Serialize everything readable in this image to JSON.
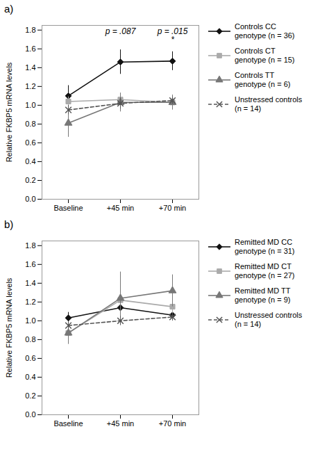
{
  "chart_data": [
    {
      "type": "line",
      "title": "a)",
      "categories": [
        "Baseline",
        "+45 min",
        "+70 min"
      ],
      "ylabel": "Relative FKBP5 mRNA levels",
      "ylim": [
        0.0,
        1.85
      ],
      "yticks": [
        {
          "value": 0.0,
          "label": "0.0"
        },
        0.2,
        0.4,
        0.6,
        0.8,
        {
          "value": 1.0,
          "label": "1.0"
        },
        1.2,
        1.4,
        1.6,
        1.8
      ],
      "legend": "right",
      "series": [
        {
          "name": "Controls CC\ngenotype (n = 36)",
          "color": "#111111",
          "values": [
            1.1,
            1.46,
            1.47
          ],
          "yerr": [
            0.11,
            0.13,
            0.1
          ],
          "marker": "diamond",
          "line_style": "solid"
        },
        {
          "name": "Controls CT\ngenotype (n = 15)",
          "color": "#aaaaaa",
          "values": [
            1.04,
            1.06,
            1.03
          ],
          "yerr": [
            0.05,
            0.07,
            0.06
          ],
          "marker": "square",
          "line_style": "solid"
        },
        {
          "name": "Controls TT\ngenotype (n = 6)",
          "color": "#777777",
          "values": [
            0.81,
            1.03,
            1.03
          ],
          "yerr": [
            0.15,
            0.1,
            0.08
          ],
          "marker": "triangle",
          "line_style": "solid"
        },
        {
          "name": "Unstressed controls\n(n = 14)",
          "color": "#555555",
          "values": [
            0.95,
            1.02,
            1.05
          ],
          "yerr": [
            0.05,
            0.06,
            0.04
          ],
          "marker": "x",
          "line_style": "dashed"
        }
      ],
      "annotations": [
        {
          "text": "p = .087",
          "x": "+45 min",
          "y": 1.76
        },
        {
          "text": "p = .015",
          "x": "+70 min",
          "y": 1.76
        },
        {
          "text": "*",
          "x": "+70 min",
          "y": 1.67
        }
      ]
    },
    {
      "type": "line",
      "title": "b)",
      "categories": [
        "Baseline",
        "+45 min",
        "+70 min"
      ],
      "ylabel": "Relative FKBP5 mRNA levels",
      "ylim": [
        0.0,
        1.85
      ],
      "yticks": [
        {
          "value": 0.0,
          "label": "0.0"
        },
        0.2,
        0.4,
        0.6,
        0.8,
        {
          "value": 1.0,
          "label": "1.0"
        },
        1.2,
        1.4,
        1.6,
        1.8
      ],
      "legend": "right",
      "series": [
        {
          "name": "Remitted MD CC\ngenotype (n = 31)",
          "color": "#111111",
          "values": [
            1.03,
            1.14,
            1.06
          ],
          "yerr": [
            0.06,
            0.05,
            0.06
          ],
          "marker": "diamond",
          "line_style": "solid"
        },
        {
          "name": "Remitted MD CT\ngenotype (n = 27)",
          "color": "#aaaaaa",
          "values": [
            0.87,
            1.22,
            1.15
          ],
          "yerr": [
            0.08,
            0.09,
            0.08
          ],
          "marker": "square",
          "line_style": "solid"
        },
        {
          "name": "Remitted MD TT\ngenotype (n = 9)",
          "color": "#777777",
          "values": [
            0.87,
            1.24,
            1.32
          ],
          "yerr": [
            0.12,
            0.28,
            0.17
          ],
          "marker": "triangle",
          "line_style": "solid"
        },
        {
          "name": "Unstressed controls\n(n = 14)",
          "color": "#555555",
          "values": [
            0.95,
            1.0,
            1.04
          ],
          "yerr": [
            0.04,
            0.05,
            0.04
          ],
          "marker": "x",
          "line_style": "dashed"
        }
      ]
    }
  ]
}
